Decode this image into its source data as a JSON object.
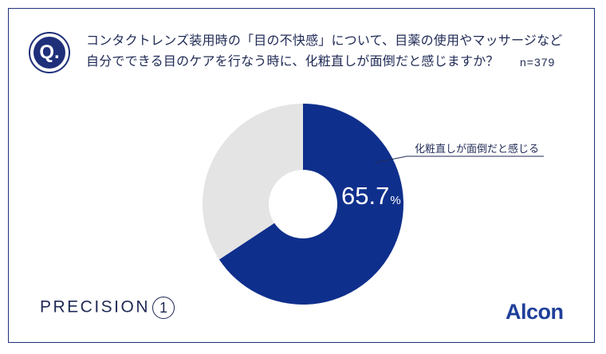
{
  "question": {
    "badge": "Q.",
    "line1": "コンタクトレンズ装用時の「目の不快感」について、目薬の使用やマッサージなど",
    "line2": "自分でできる目のケアを行なう時に、化粧直しが面倒だと感じますか？",
    "sample_size": "n=379"
  },
  "chart_data": {
    "type": "pie",
    "title": "",
    "slices": [
      {
        "label": "化粧直しが面倒だと感じる",
        "value": 65.7,
        "color": "#0f2f8c"
      },
      {
        "label": "",
        "value": 34.3,
        "color": "#e4e4e4"
      }
    ],
    "data_label": "65.7",
    "data_label_unit": "%",
    "callout_label": "化粧直しが面倒だと感じる"
  },
  "footer": {
    "brand_text": "PRECISION",
    "brand_number": "1",
    "logo_text": "Alcon"
  },
  "colors": {
    "accent": "#1f2f7a",
    "donut_primary": "#0f2f8c",
    "donut_secondary": "#e4e4e4",
    "logo": "#1f3f9a"
  }
}
